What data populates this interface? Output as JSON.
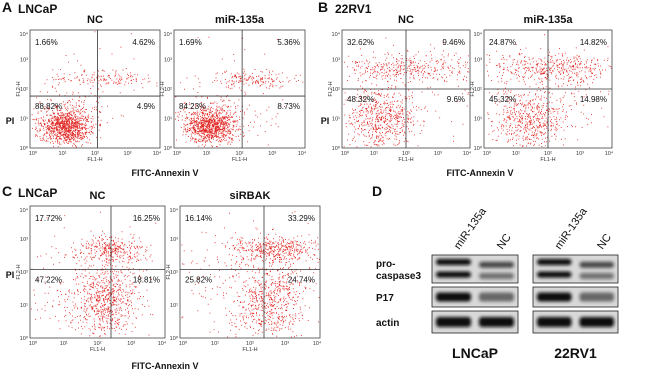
{
  "axis_ticks": [
    "10⁰",
    "10¹",
    "10²",
    "10³",
    "10⁴"
  ],
  "x_channel": "FL1-H",
  "y_channel": "FL2-H",
  "flow_panels": [
    {
      "label": "A",
      "cell_line": "LNCaP",
      "y_axis_label": "PI",
      "x_axis_label": "FITC-Annexin V",
      "plots": [
        {
          "title": "NC",
          "upper_left": "1.66%",
          "upper_right": "4.62%",
          "lower_left": "88.82%",
          "lower_right": "4.9%"
        },
        {
          "title": "miR-135a",
          "upper_left": "1.69%",
          "upper_right": "5.36%",
          "lower_left": "84.23%",
          "lower_right": "8.73%"
        }
      ]
    },
    {
      "label": "B",
      "cell_line": "22RV1",
      "y_axis_label": "PI",
      "x_axis_label": "FITC-Annexin V",
      "plots": [
        {
          "title": "NC",
          "upper_left": "32.62%",
          "upper_right": "9.46%",
          "lower_left": "48.32%",
          "lower_right": "9.6%"
        },
        {
          "title": "miR-135a",
          "upper_left": "24.87%",
          "upper_right": "14.82%",
          "lower_left": "45.32%",
          "lower_right": "14.98%"
        }
      ]
    },
    {
      "label": "C",
      "cell_line": "LNCaP",
      "y_axis_label": "PI",
      "x_axis_label": "FITC-Annexin V",
      "plots": [
        {
          "title": "NC",
          "upper_left": "17.72%",
          "upper_right": "16.25%",
          "lower_left": "47.22%",
          "lower_right": "18.81%"
        },
        {
          "title": "siRBAK",
          "upper_left": "16.14%",
          "upper_right": "33.29%",
          "lower_left": "25.82%",
          "lower_right": "24.74%"
        }
      ]
    }
  ],
  "blot_panel": {
    "label": "D",
    "lanes": [
      "miR-135a",
      "NC"
    ],
    "rows": [
      [
        "pro-",
        "caspase3"
      ],
      [
        "P17"
      ],
      [
        "actin"
      ]
    ],
    "cell_lines": [
      "LNCaP",
      "22RV1"
    ]
  }
}
